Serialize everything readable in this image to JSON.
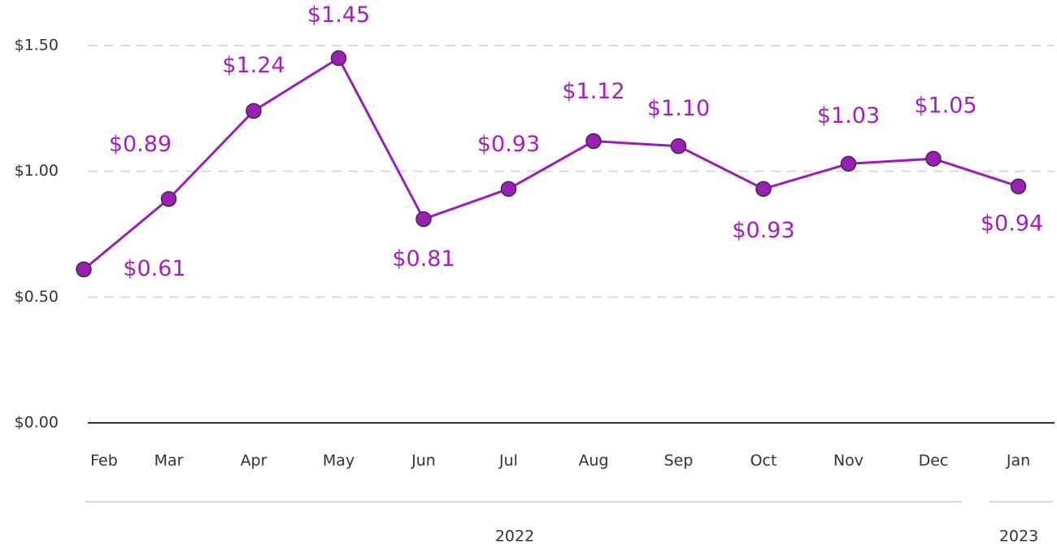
{
  "chart_data": {
    "type": "line",
    "categories": [
      "Feb",
      "Mar",
      "Apr",
      "May",
      "Jun",
      "Jul",
      "Aug",
      "Sep",
      "Oct",
      "Nov",
      "Dec",
      "Jan"
    ],
    "x_groups": [
      "2022",
      "2023"
    ],
    "series": [
      {
        "color": "#9b1fb5",
        "values": [
          0.61,
          0.89,
          1.24,
          1.45,
          0.81,
          0.93,
          1.12,
          1.1,
          0.93,
          1.03,
          1.05,
          0.94
        ],
        "value_labels": [
          "$0.61",
          "$0.89",
          "$1.24",
          "$1.45",
          "$0.81",
          "$0.93",
          "$1.12",
          "$1.10",
          "$0.93",
          "$1.03",
          "$1.05",
          "$0.94"
        ]
      }
    ],
    "ylim": [
      0,
      1.5
    ],
    "yticks": [
      {
        "value": 0,
        "label": "$0.00"
      },
      {
        "value": 0.5,
        "label": "$0.50"
      },
      {
        "value": 1,
        "label": "$1.00"
      },
      {
        "value": 1.5,
        "label": "$1.50"
      }
    ],
    "grid": true
  }
}
